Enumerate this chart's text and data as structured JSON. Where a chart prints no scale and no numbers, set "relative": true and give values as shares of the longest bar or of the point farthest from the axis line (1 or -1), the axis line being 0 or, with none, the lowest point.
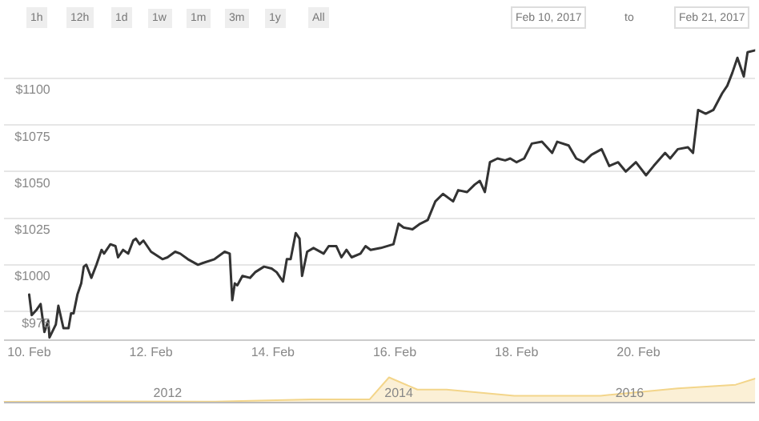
{
  "chart_data": [
    {
      "type": "line",
      "annotations": [
        "1h",
        "12h",
        "1d",
        "1w",
        "1m",
        "3m",
        "1y",
        "All",
        "Feb 10, 2017",
        "to",
        "Feb 21, 2017"
      ],
      "x": [
        "2017-02-10T00:00",
        "2017-02-10T01:00",
        "2017-02-10T03:00",
        "2017-02-10T04:30",
        "2017-02-10T06:00",
        "2017-02-10T07:30",
        "2017-02-10T08:00",
        "2017-02-10T10:30",
        "2017-02-10T11:30",
        "2017-02-10T13:30",
        "2017-02-10T15:30",
        "2017-02-10T16:30",
        "2017-02-10T17:30",
        "2017-02-10T19:00",
        "2017-02-10T20:30",
        "2017-02-10T21:30",
        "2017-02-10T22:30",
        "2017-02-11T00:30",
        "2017-02-11T02:30",
        "2017-02-11T04:30",
        "2017-02-11T05:30",
        "2017-02-11T08:00",
        "2017-02-11T10:00",
        "2017-02-11T11:00",
        "2017-02-11T13:00",
        "2017-02-11T15:00",
        "2017-02-11T17:00",
        "2017-02-11T18:00",
        "2017-02-11T19:30",
        "2017-02-11T21:00",
        "2017-02-12T00:00",
        "2017-02-12T04:30",
        "2017-02-12T06:30",
        "2017-02-12T09:30",
        "2017-02-12T11:30",
        "2017-02-12T14:30",
        "2017-02-12T18:30",
        "2017-02-12T20:30",
        "2017-02-13T01:00",
        "2017-02-13T05:00",
        "2017-02-13T07:00",
        "2017-02-13T08:00",
        "2017-02-13T09:00",
        "2017-02-13T10:00",
        "2017-02-13T12:00",
        "2017-02-13T15:00",
        "2017-02-13T17:00",
        "2017-02-13T20:30",
        "2017-02-13T23:30",
        "2017-02-14T01:30",
        "2017-02-14T04:00",
        "2017-02-14T05:30",
        "2017-02-14T07:00",
        "2017-02-14T09:00",
        "2017-02-14T10:30",
        "2017-02-14T11:30",
        "2017-02-14T13:30",
        "2017-02-14T16:00",
        "2017-02-14T20:00",
        "2017-02-14T22:00",
        "2017-02-15T01:00",
        "2017-02-15T03:00",
        "2017-02-15T05:00",
        "2017-02-15T07:00",
        "2017-02-15T10:30",
        "2017-02-15T12:30",
        "2017-02-15T14:30",
        "2017-02-15T18:30",
        "2017-02-15T23:30",
        "2017-02-16T01:30",
        "2017-02-16T03:30",
        "2017-02-16T07:00",
        "2017-02-16T10:00",
        "2017-02-16T13:00",
        "2017-02-16T16:00",
        "2017-02-16T19:00",
        "2017-02-16T23:00",
        "2017-02-17T01:00",
        "2017-02-17T04:30",
        "2017-02-17T07:30",
        "2017-02-17T09:30",
        "2017-02-17T11:30",
        "2017-02-17T13:30",
        "2017-02-17T16:30",
        "2017-02-17T19:30",
        "2017-02-17T21:30",
        "2017-02-18T00:00",
        "2017-02-18T03:00",
        "2017-02-18T06:00",
        "2017-02-18T10:00",
        "2017-02-18T14:00",
        "2017-02-18T16:00",
        "2017-02-18T20:30",
        "2017-02-18T23:30",
        "2017-02-19T02:30",
        "2017-02-19T05:30",
        "2017-02-19T09:30",
        "2017-02-19T12:30",
        "2017-02-19T16:00",
        "2017-02-19T19:00",
        "2017-02-19T23:00",
        "2017-02-20T03:00",
        "2017-02-20T06:00",
        "2017-02-20T10:30",
        "2017-02-20T12:30",
        "2017-02-20T15:30",
        "2017-02-20T19:30",
        "2017-02-20T21:30",
        "2017-02-20T23:30",
        "2017-02-21T02:30",
        "2017-02-21T05:30",
        "2017-02-21T09:00",
        "2017-02-21T11:00",
        "2017-02-21T13:00",
        "2017-02-21T15:00",
        "2017-02-21T17:30",
        "2017-02-21T19:00",
        "2017-02-21T22:00"
      ],
      "series": [
        {
          "color": "#333333",
          "values": [
            984,
            973,
            976,
            979,
            964,
            970,
            961,
            968,
            978,
            966,
            966,
            974,
            974,
            984,
            990,
            999,
            1000,
            993,
            1000,
            1008,
            1006,
            1011,
            1010,
            1004,
            1008,
            1006,
            1013,
            1014,
            1011,
            1013,
            1007,
            1003,
            1004,
            1007,
            1006,
            1003,
            1000,
            1001,
            1003,
            1007,
            1006,
            981,
            990,
            989,
            994,
            993,
            996,
            999,
            998,
            996,
            991,
            1003,
            1003,
            1017,
            1014,
            994,
            1007,
            1009,
            1006,
            1010,
            1010,
            1004,
            1008,
            1004,
            1006,
            1010,
            1008,
            1009,
            1011,
            1022,
            1020,
            1019,
            1022,
            1024,
            1034,
            1038,
            1034,
            1040,
            1039,
            1043,
            1045,
            1039,
            1055,
            1057,
            1056,
            1057,
            1055,
            1057,
            1065,
            1066,
            1060,
            1066,
            1064,
            1057,
            1055,
            1059,
            1062,
            1053,
            1055,
            1050,
            1055,
            1048,
            1053,
            1060,
            1057,
            1062,
            1063,
            1060,
            1083,
            1081,
            1083,
            1092,
            1096,
            1103,
            1111,
            1101,
            1114,
            1115
          ]
        }
      ],
      "xlim": [
        "2017-02-09T14:00",
        "2017-02-21T22:00"
      ],
      "xticks": [
        {
          "value": "2017-02-10",
          "label": "10. Feb"
        },
        {
          "value": "2017-02-12",
          "label": "12. Feb"
        },
        {
          "value": "2017-02-14",
          "label": "14. Feb"
        },
        {
          "value": "2017-02-16",
          "label": "16. Feb"
        },
        {
          "value": "2017-02-18",
          "label": "18. Feb"
        },
        {
          "value": "2017-02-20",
          "label": "20. Feb"
        }
      ],
      "ylim": [
        960,
        1142
      ],
      "yticks": [
        {
          "value": 975,
          "label": "$975"
        },
        {
          "value": 1000,
          "label": "$1000"
        },
        {
          "value": 1025,
          "label": "$1025"
        },
        {
          "value": 1050,
          "label": "$1050"
        },
        {
          "value": 1075,
          "label": "$1075"
        },
        {
          "value": 1100,
          "label": "$1100"
        }
      ],
      "grid": "y",
      "marker": "none",
      "line_style": "solid"
    },
    {
      "type": "area",
      "relative": true,
      "tick_labels": "x",
      "x": [
        "2010-08",
        "2011-06",
        "2012-06",
        "2013-04",
        "2013-10",
        "2013-12",
        "2014-03",
        "2014-06",
        "2015-01",
        "2015-10",
        "2016-06",
        "2016-12",
        "2017-02"
      ],
      "series": [
        {
          "color": "#f3d58a",
          "values": [
            0,
            0.02,
            0.01,
            0.1,
            0.1,
            1.0,
            0.5,
            0.5,
            0.25,
            0.25,
            0.55,
            0.7,
            0.95
          ]
        }
      ],
      "xlim": [
        "2010-08",
        "2017-02"
      ],
      "xticks": [
        {
          "value": "2012-01",
          "label": "2012"
        },
        {
          "value": "2014-01",
          "label": "2014"
        },
        {
          "value": "2016-01",
          "label": "2016"
        }
      ]
    }
  ]
}
